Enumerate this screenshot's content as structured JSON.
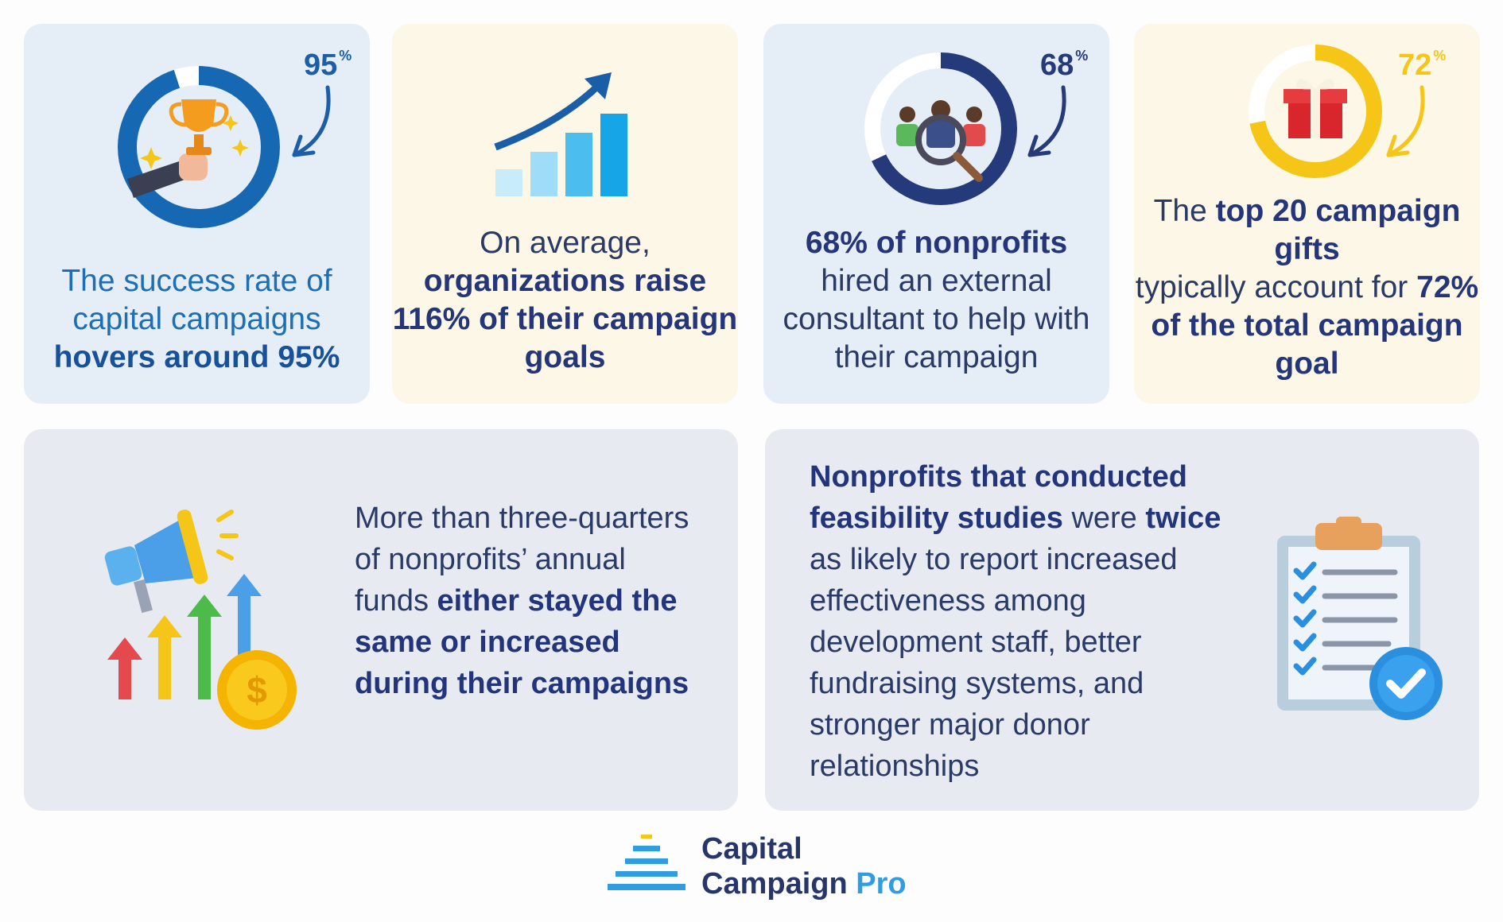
{
  "cards": [
    {
      "percent": "95",
      "percent_sign": "%",
      "text_normal": "The success rate of capital campaigns",
      "text_bold": "hovers around 95%",
      "ring_value": 95,
      "ring_color": "#1768b3"
    },
    {
      "text_normal": "On average,",
      "text_bold": "organizations raise 116% of their campaign goals"
    },
    {
      "percent": "68",
      "percent_sign": "%",
      "text_bold": "68% of nonprofits",
      "text_normal": "hired an external consultant to help with their campaign",
      "ring_value": 68,
      "ring_color": "#243a7a"
    },
    {
      "percent": "72",
      "percent_sign": "%",
      "text_pre": "The",
      "text_bold_1": "top 20 campaign gifts",
      "text_mid": "typically account for",
      "text_bold_2": "72% of the total campaign goal",
      "ring_value": 72,
      "ring_color": "#f5c518"
    }
  ],
  "bottom_left": {
    "text_normal": "More than three-quarters of nonprofits’ annual funds",
    "text_bold": "either stayed the same or increased during their campaigns"
  },
  "bottom_right": {
    "text_bold_1": "Nonprofits that conducted feasibility studies",
    "text_mid_1": "were",
    "text_bold_2": "twice",
    "text_rest": "as likely to report increased effectiveness among development staff, better fundraising systems, and stronger major donor relationships"
  },
  "logo": {
    "line1": "Capital",
    "line2": "Campaign",
    "line2_accent": "Pro"
  },
  "colors": {
    "blue_dark": "#24357a",
    "blue_light": "#2f9de0",
    "yellow": "#f5c518",
    "card_blue": "#e5eef7",
    "card_cream": "#fcf7e6",
    "card_gray": "#e8eaf2"
  }
}
